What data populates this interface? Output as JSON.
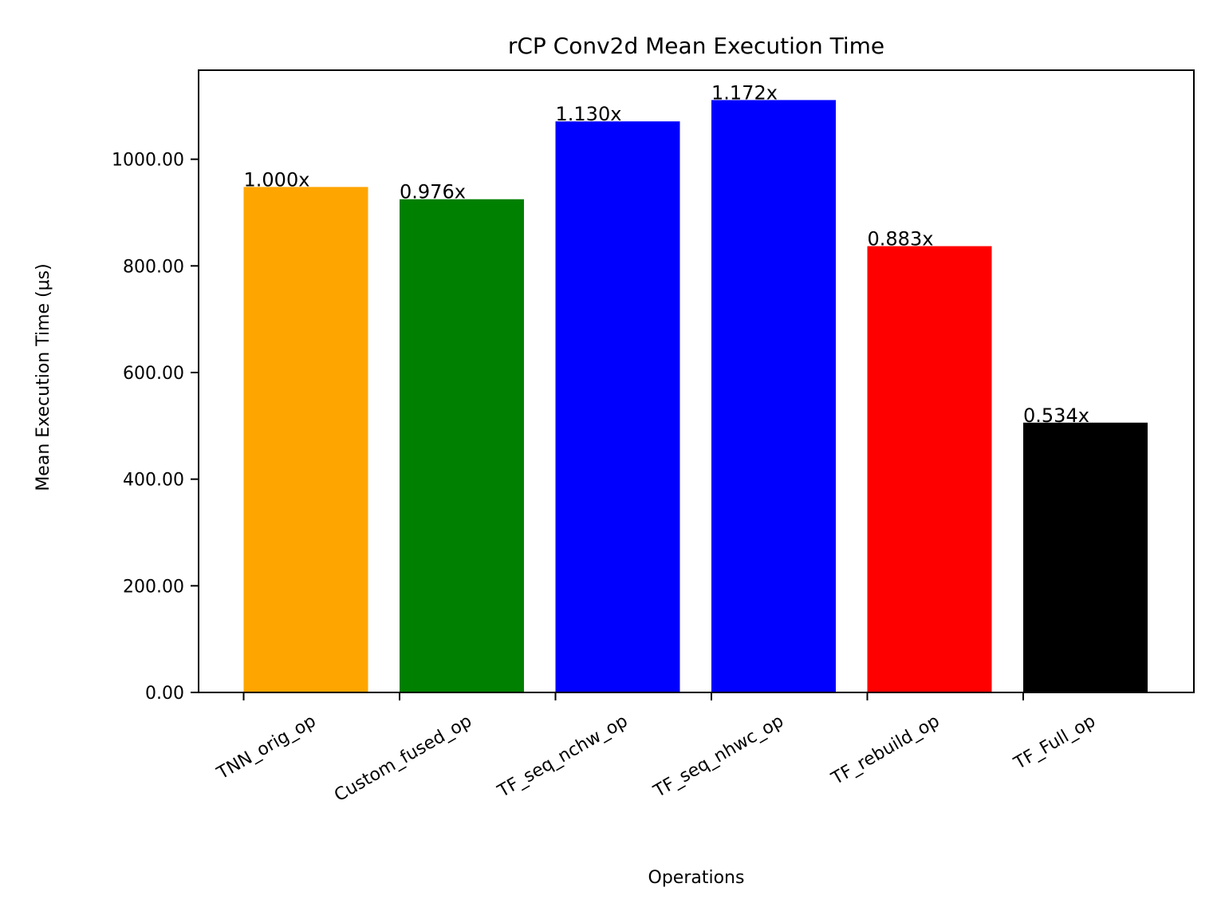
{
  "chart_data": {
    "type": "bar",
    "title": "rCP Conv2d Mean Execution Time",
    "xlabel": "Operations",
    "ylabel": "Mean Execution Time (μs)",
    "ylim": [
      0,
      1167
    ],
    "yticks": [
      0,
      200,
      400,
      600,
      800,
      1000
    ],
    "ytick_labels": [
      "0.00",
      "200.00",
      "400.00",
      "600.00",
      "800.00",
      "1000.00"
    ],
    "grid": false,
    "categories": [
      "TNN_orig_op",
      "Custom_fused_op",
      "TF_seq_nchw_op",
      "TF_seq_nhwc_op",
      "TF_rebuild_op",
      "TF_Full_op"
    ],
    "values": [
      948,
      925,
      1071,
      1111,
      837,
      506
    ],
    "bar_labels": [
      "1.000x",
      "0.976x",
      "1.130x",
      "1.172x",
      "0.883x",
      "0.534x"
    ],
    "colors": [
      "#FFA500",
      "#008000",
      "#0000FF",
      "#0000FF",
      "#FF0000",
      "#000000"
    ]
  }
}
